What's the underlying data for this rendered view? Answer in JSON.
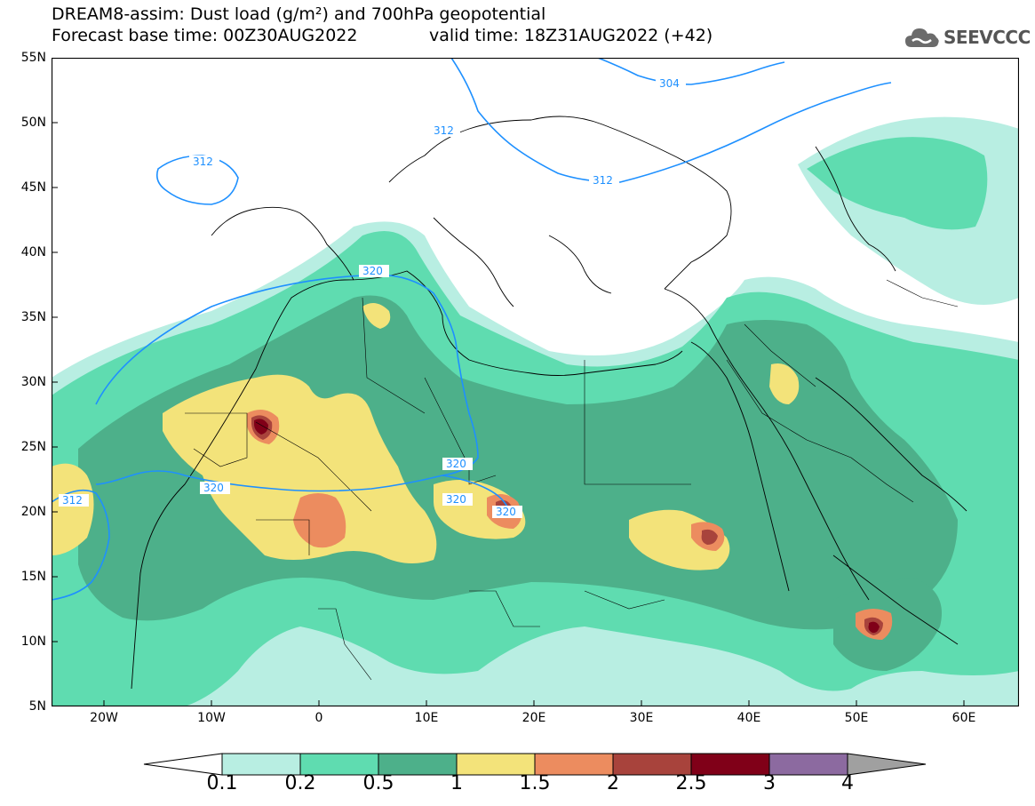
{
  "title_line1": "DREAM8-assim: Dust load (g/m²) and 700hPa geopotential",
  "title_line2_left": "Forecast base time: 00Z30AUG2022",
  "title_line2_right": "valid time: 18Z31AUG2022 (+42)",
  "logo_text": "SEEVCCC",
  "logo_icon": "cloud-icon",
  "lat_labels": [
    "55N",
    "50N",
    "45N",
    "40N",
    "35N",
    "30N",
    "25N",
    "20N",
    "15N",
    "10N",
    "5N"
  ],
  "lon_labels": [
    "20W",
    "10W",
    "0",
    "10E",
    "20E",
    "30E",
    "40E",
    "50E",
    "60E"
  ],
  "contour_labels": [
    "304",
    "312",
    "312",
    "312",
    "312",
    "320",
    "320",
    "320",
    "320",
    "320"
  ],
  "colorbar": {
    "tick_labels": [
      "0.1",
      "0.2",
      "0.5",
      "1",
      "1.5",
      "2",
      "2.5",
      "3",
      "4"
    ],
    "colors": [
      "#ffffff",
      "#b8eee2",
      "#5fdcb0",
      "#4db08a",
      "#f3e37a",
      "#ec8c5f",
      "#a8433c",
      "#800018",
      "#8c6aa0",
      "#a0a0a0"
    ]
  },
  "legend_colors": {
    "land_outline": "#000000",
    "contour_line": "#1e90ff"
  }
}
